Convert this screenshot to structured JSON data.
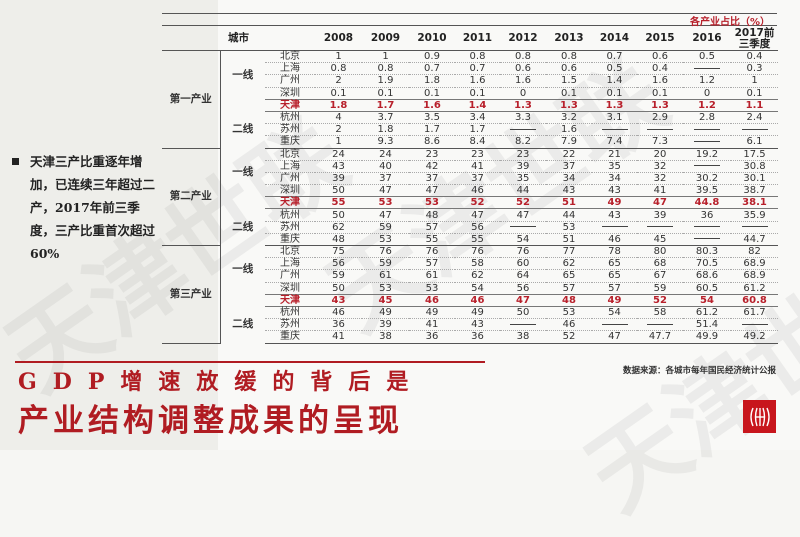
{
  "watermark": "天津世联",
  "bullet": {
    "text": "天津三产比重逐年增加，已连续三年超过二产，2017年前三季度，三产比重首次超过60%"
  },
  "table": {
    "unit_label": "各产业占比（%）",
    "header": {
      "city_label": "城市",
      "years": [
        "2008",
        "2009",
        "2010",
        "2011",
        "2012",
        "2013",
        "2014",
        "2015",
        "2016",
        "2017前三季度"
      ]
    },
    "sections": [
      {
        "category": "第一产业",
        "tier1_label": "一线",
        "tier2_label": "二线",
        "rows": [
          {
            "city": "北京",
            "values": [
              "1",
              "1",
              "0.9",
              "0.8",
              "0.8",
              "0.8",
              "0.7",
              "0.6",
              "0.5",
              "0.4"
            ]
          },
          {
            "city": "上海",
            "values": [
              "0.8",
              "0.8",
              "0.7",
              "0.7",
              "0.6",
              "0.6",
              "0.5",
              "0.4",
              "—",
              "0.3"
            ]
          },
          {
            "city": "广州",
            "values": [
              "2",
              "1.9",
              "1.8",
              "1.6",
              "1.6",
              "1.5",
              "1.4",
              "1.6",
              "1.2",
              "1"
            ]
          },
          {
            "city": "深圳",
            "values": [
              "0.1",
              "0.1",
              "0.1",
              "0.1",
              "0",
              "0.1",
              "0.1",
              "0.1",
              "0",
              "0.1"
            ]
          },
          {
            "city": "天津",
            "values": [
              "1.8",
              "1.7",
              "1.6",
              "1.4",
              "1.3",
              "1.3",
              "1.3",
              "1.3",
              "1.2",
              "1.1"
            ]
          },
          {
            "city": "杭州",
            "values": [
              "4",
              "3.7",
              "3.5",
              "3.4",
              "3.3",
              "3.2",
              "3.1",
              "2.9",
              "2.8",
              "2.4"
            ]
          },
          {
            "city": "苏州",
            "values": [
              "2",
              "1.8",
              "1.7",
              "1.7",
              "—",
              "1.6",
              "—",
              "—",
              "—",
              "—"
            ]
          },
          {
            "city": "重庆",
            "values": [
              "1",
              "9.3",
              "8.6",
              "8.4",
              "8.2",
              "7.9",
              "7.4",
              "7.3",
              "—",
              "6.1"
            ]
          }
        ]
      },
      {
        "category": "第二产业",
        "tier1_label": "一线",
        "tier2_label": "二线",
        "rows": [
          {
            "city": "北京",
            "values": [
              "24",
              "24",
              "23",
              "23",
              "23",
              "22",
              "21",
              "20",
              "19.2",
              "17.5"
            ]
          },
          {
            "city": "上海",
            "values": [
              "43",
              "40",
              "42",
              "41",
              "39",
              "37",
              "35",
              "32",
              "—",
              "30.8"
            ]
          },
          {
            "city": "广州",
            "values": [
              "39",
              "37",
              "37",
              "37",
              "35",
              "34",
              "34",
              "32",
              "30.2",
              "30.1"
            ]
          },
          {
            "city": "深圳",
            "values": [
              "50",
              "47",
              "47",
              "46",
              "44",
              "43",
              "43",
              "41",
              "39.5",
              "38.7"
            ]
          },
          {
            "city": "天津",
            "values": [
              "55",
              "53",
              "53",
              "52",
              "52",
              "51",
              "49",
              "47",
              "44.8",
              "38.1"
            ]
          },
          {
            "city": "杭州",
            "values": [
              "50",
              "47",
              "48",
              "47",
              "47",
              "44",
              "43",
              "39",
              "36",
              "35.9"
            ]
          },
          {
            "city": "苏州",
            "values": [
              "62",
              "59",
              "57",
              "56",
              "—",
              "53",
              "—",
              "—",
              "—",
              "—"
            ]
          },
          {
            "city": "重庆",
            "values": [
              "48",
              "53",
              "55",
              "55",
              "54",
              "51",
              "46",
              "45",
              "—",
              "44.7"
            ]
          }
        ]
      },
      {
        "category": "第三产业",
        "tier1_label": "一线",
        "tier2_label": "二线",
        "rows": [
          {
            "city": "北京",
            "values": [
              "75",
              "76",
              "76",
              "76",
              "76",
              "77",
              "78",
              "80",
              "80.3",
              "82"
            ]
          },
          {
            "city": "上海",
            "values": [
              "56",
              "59",
              "57",
              "58",
              "60",
              "62",
              "65",
              "68",
              "70.5",
              "68.9"
            ]
          },
          {
            "city": "广州",
            "values": [
              "59",
              "61",
              "61",
              "62",
              "64",
              "65",
              "65",
              "67",
              "68.6",
              "68.9"
            ]
          },
          {
            "city": "深圳",
            "values": [
              "50",
              "53",
              "53",
              "54",
              "56",
              "57",
              "57",
              "59",
              "60.5",
              "61.2"
            ]
          },
          {
            "city": "天津",
            "values": [
              "43",
              "45",
              "46",
              "46",
              "47",
              "48",
              "49",
              "52",
              "54",
              "60.8"
            ]
          },
          {
            "city": "杭州",
            "values": [
              "46",
              "49",
              "49",
              "49",
              "50",
              "53",
              "54",
              "58",
              "61.2",
              "61.7"
            ]
          },
          {
            "city": "苏州",
            "values": [
              "36",
              "39",
              "41",
              "43",
              "—",
              "46",
              "—",
              "—",
              "51.4",
              "—"
            ]
          },
          {
            "city": "重庆",
            "values": [
              "41",
              "38",
              "36",
              "36",
              "38",
              "52",
              "47",
              "47.7",
              "49.9",
              "49.2"
            ]
          }
        ]
      }
    ]
  },
  "source": "数据来源：各城市每年国民经济统计公报",
  "headline": {
    "line1": "GDP增速放缓的背后是",
    "line2": "产业结构调整成果的呈现"
  },
  "colors": {
    "accent_red": "#b01c22",
    "highlight_row": "#b8202b",
    "left_panel_bg": "#eeeeea"
  },
  "logo": {
    "icon": "company-logo-icon"
  }
}
